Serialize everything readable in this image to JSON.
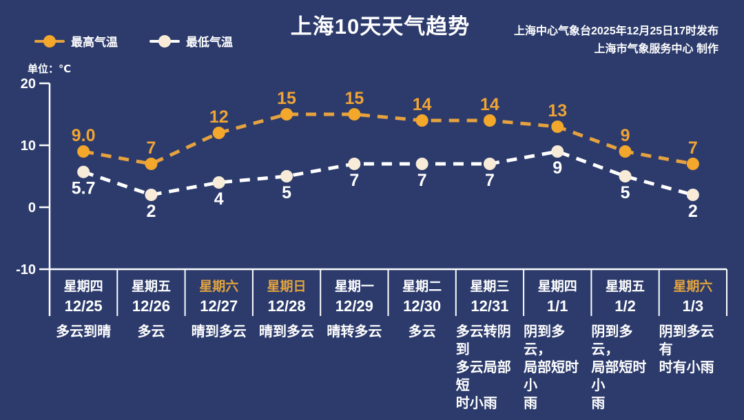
{
  "title": "上海10天天气趋势",
  "source": {
    "line1": "上海中心气象台2025年12月25日17时发布",
    "line2": "上海市气象服务中心  制作"
  },
  "unit_label": "单位：℃",
  "colors": {
    "background": "#2c3b6c",
    "text": "#ffffff",
    "weekend_text": "#e2a33e",
    "high_marker": "#f3a72b",
    "high_line": "#e6a23f",
    "high_label": "#f0a433",
    "low_marker": "#f8ecd8",
    "low_line": "#ffffff",
    "axis": "#ffffff"
  },
  "chart_data": {
    "type": "line",
    "title": "上海10天天气趋势",
    "ylabel": "单位：℃",
    "ylim": [
      -10,
      20
    ],
    "y_ticks": [
      20,
      10,
      0,
      -10
    ],
    "grid": false,
    "legend_position": "top-left",
    "series": [
      {
        "name": "最高气温",
        "values": [
          9.0,
          7,
          12,
          15,
          15,
          14,
          14,
          13,
          9,
          7
        ],
        "labels": [
          "9.0",
          "7",
          "12",
          "15",
          "15",
          "14",
          "14",
          "13",
          "9",
          "7"
        ],
        "color": "#f3a72b",
        "line_color": "#e6a23f",
        "label_color": "#f0a433",
        "label_position": "above"
      },
      {
        "name": "最低气温",
        "values": [
          5.7,
          2,
          4,
          5,
          7,
          7,
          7,
          9,
          5,
          2
        ],
        "labels": [
          "5.7",
          "2",
          "4",
          "5",
          "7",
          "7",
          "7",
          "9",
          "5",
          "2"
        ],
        "color": "#f8ecd8",
        "line_color": "#ffffff",
        "label_color": "#ffffff",
        "label_position": "below"
      }
    ],
    "categories": [
      {
        "weekday": "星期四",
        "date": "12/25",
        "weather": "多云到晴",
        "highlight": false
      },
      {
        "weekday": "星期五",
        "date": "12/26",
        "weather": "多云",
        "highlight": false
      },
      {
        "weekday": "星期六",
        "date": "12/27",
        "weather": "晴到多云",
        "highlight": true
      },
      {
        "weekday": "星期日",
        "date": "12/28",
        "weather": "晴到多云",
        "highlight": true
      },
      {
        "weekday": "星期一",
        "date": "12/29",
        "weather": "晴转多云",
        "highlight": false
      },
      {
        "weekday": "星期二",
        "date": "12/30",
        "weather": "多云",
        "highlight": false
      },
      {
        "weekday": "星期三",
        "date": "12/31",
        "weather": "多云转阴到\n多云局部短\n时小雨",
        "highlight": false
      },
      {
        "weekday": "星期四",
        "date": "1/1",
        "weather": "阴到多云，\n局部短时小\n雨",
        "highlight": false
      },
      {
        "weekday": "星期五",
        "date": "1/2",
        "weather": "阴到多云，\n局部短时小\n雨",
        "highlight": false
      },
      {
        "weekday": "星期六",
        "date": "1/3",
        "weather": "阴到多云有\n时有小雨",
        "highlight": true
      }
    ]
  }
}
